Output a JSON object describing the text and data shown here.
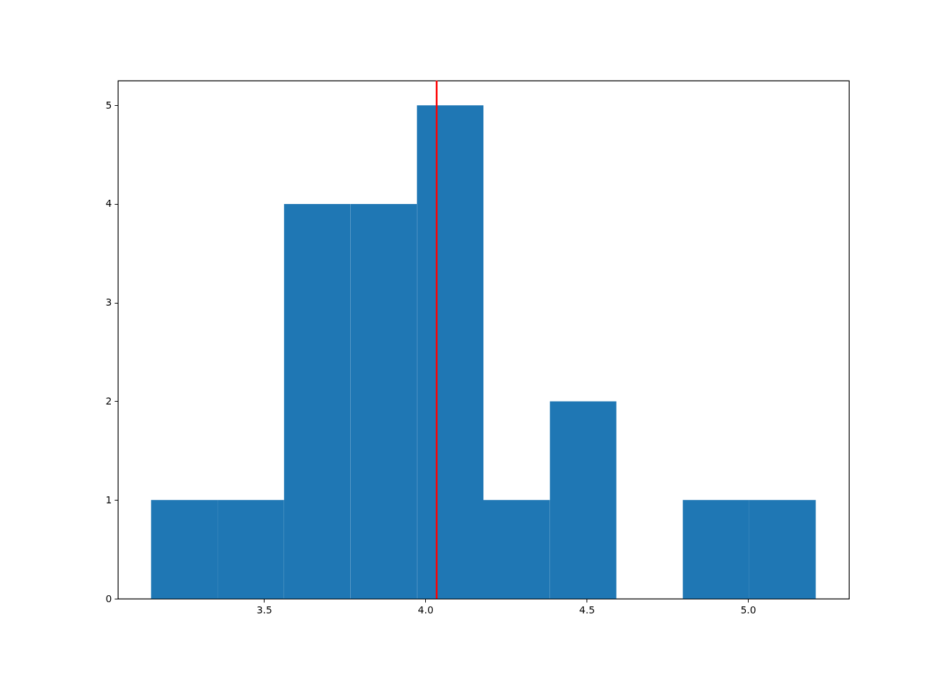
{
  "chart_data": {
    "type": "histogram",
    "bins": [
      3.15,
      3.356,
      3.562,
      3.768,
      3.974,
      4.18,
      4.386,
      4.592,
      4.798,
      5.004,
      5.21
    ],
    "values": [
      1,
      1,
      4,
      4,
      5,
      1,
      2,
      0,
      1,
      1
    ],
    "color": "#1f77b4",
    "xlim": [
      3.047,
      5.313
    ],
    "xticks": [
      3.5,
      {
        "value": 4,
        "label": "4.0"
      },
      4.5,
      {
        "value": 5,
        "label": "5.0"
      }
    ],
    "ylim": [
      0,
      5.25
    ],
    "yticks": [
      0,
      1,
      2,
      3,
      4,
      5
    ],
    "ref_lines": [
      {
        "axis": "x",
        "value": 4.035,
        "color": "#ff0000"
      }
    ],
    "grid": false
  }
}
